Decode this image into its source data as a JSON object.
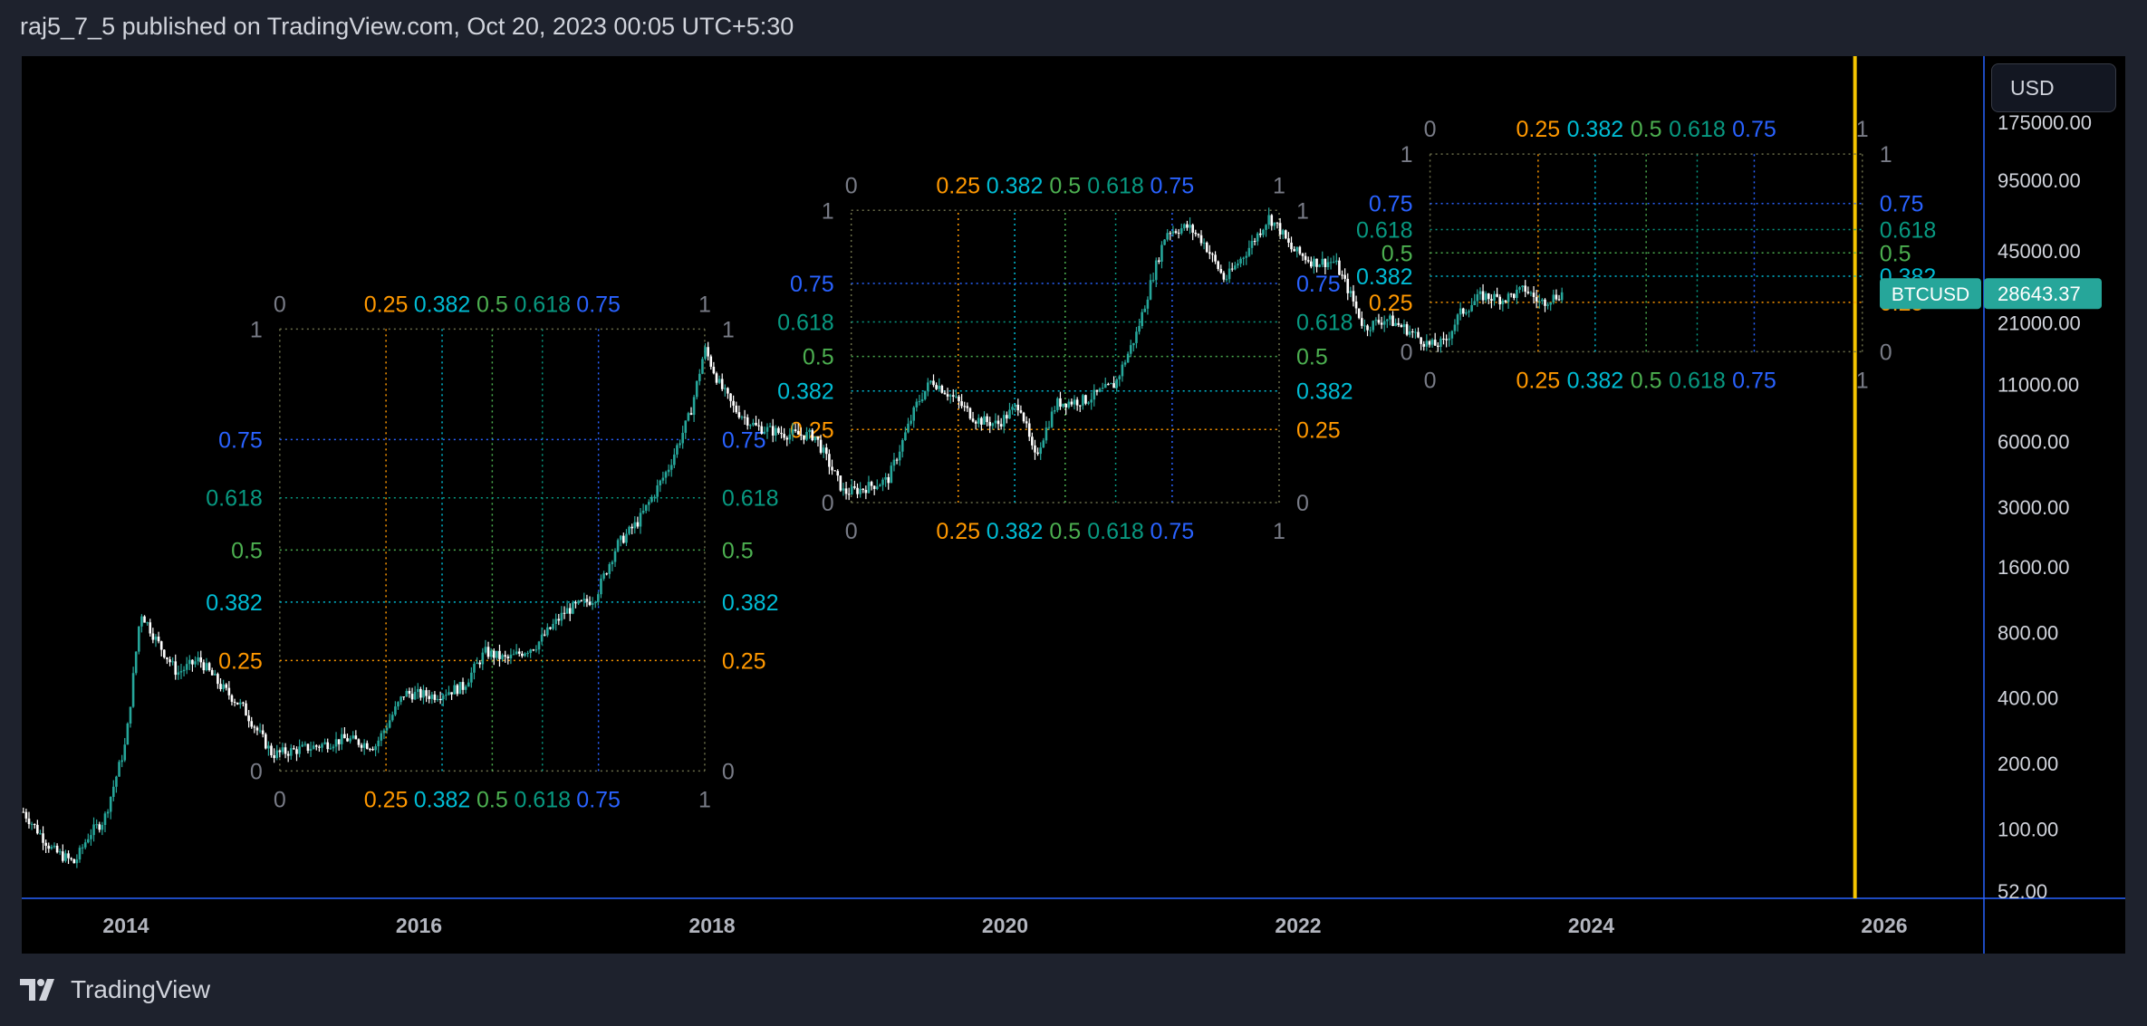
{
  "header": {
    "attribution": "raj5_7_5 published on TradingView.com, Oct 20, 2023 00:05 UTC+5:30"
  },
  "toolbar": {
    "currency": "USD"
  },
  "footer": {
    "brand": "TradingView",
    "logo_icon": "tradingview-logo-icon"
  },
  "colors": {
    "background": "#000000",
    "frame": "#1e222d",
    "axis_line": "#2962ff",
    "candle_up": "#26a69a",
    "candle_down": "#ffffff",
    "vertical_marker": "#f5c400",
    "price_badge": "#26a69a",
    "fib": {
      "0": "#787b86",
      "0.25": "#ff9800",
      "0.382": "#00bcd4",
      "0.5": "#4caf50",
      "0.618": "#089981",
      "0.75": "#2962ff",
      "1": "#787b86"
    }
  },
  "chart_data": {
    "type": "candlestick",
    "title": "",
    "symbol": "BTCUSD",
    "last_price": "28643.37",
    "yscale": "log",
    "ylim": [
      52,
      175000
    ],
    "xlim": [
      2013.3,
      2026.7
    ],
    "x_ticks": [
      "2014",
      "2016",
      "2018",
      "2020",
      "2022",
      "2024",
      "2026"
    ],
    "y_ticks": [
      "175000.00",
      "95000.00",
      "45000.00",
      "21000.00",
      "11000.00",
      "6000.00",
      "3000.00",
      "1600.00",
      "800.00",
      "400.00",
      "200.00",
      "100.00",
      "52.00"
    ],
    "vertical_marker_x": 2025.8,
    "price_path": [
      [
        2013.3,
        120
      ],
      [
        2013.5,
        80
      ],
      [
        2013.65,
        70
      ],
      [
        2013.75,
        95
      ],
      [
        2013.85,
        110
      ],
      [
        2014.0,
        250
      ],
      [
        2014.1,
        1000
      ],
      [
        2014.2,
        750
      ],
      [
        2014.35,
        520
      ],
      [
        2014.5,
        600
      ],
      [
        2014.65,
        450
      ],
      [
        2014.8,
        360
      ],
      [
        2015.0,
        220
      ],
      [
        2015.15,
        230
      ],
      [
        2015.3,
        240
      ],
      [
        2015.5,
        260
      ],
      [
        2015.7,
        240
      ],
      [
        2015.9,
        420
      ],
      [
        2016.1,
        410
      ],
      [
        2016.3,
        450
      ],
      [
        2016.45,
        650
      ],
      [
        2016.6,
        600
      ],
      [
        2016.8,
        700
      ],
      [
        2017.0,
        1000
      ],
      [
        2017.2,
        1150
      ],
      [
        2017.35,
        2000
      ],
      [
        2017.5,
        2600
      ],
      [
        2017.7,
        4500
      ],
      [
        2017.85,
        8000
      ],
      [
        2017.95,
        16000
      ],
      [
        2018.05,
        11000
      ],
      [
        2018.15,
        8500
      ],
      [
        2018.3,
        7000
      ],
      [
        2018.5,
        6500
      ],
      [
        2018.7,
        6400
      ],
      [
        2018.9,
        3500
      ],
      [
        2019.0,
        3600
      ],
      [
        2019.2,
        4000
      ],
      [
        2019.4,
        9000
      ],
      [
        2019.5,
        11500
      ],
      [
        2019.65,
        9500
      ],
      [
        2019.8,
        7600
      ],
      [
        2019.95,
        7200
      ],
      [
        2020.1,
        9000
      ],
      [
        2020.2,
        5000
      ],
      [
        2020.35,
        9000
      ],
      [
        2020.55,
        9300
      ],
      [
        2020.75,
        11000
      ],
      [
        2020.9,
        19000
      ],
      [
        2021.0,
        33000
      ],
      [
        2021.1,
        55000
      ],
      [
        2021.25,
        58000
      ],
      [
        2021.35,
        50000
      ],
      [
        2021.5,
        33000
      ],
      [
        2021.65,
        45000
      ],
      [
        2021.8,
        64000
      ],
      [
        2021.87,
        57000
      ],
      [
        2021.95,
        46000
      ],
      [
        2022.1,
        40000
      ],
      [
        2022.25,
        40000
      ],
      [
        2022.35,
        29000
      ],
      [
        2022.45,
        20000
      ],
      [
        2022.6,
        22000
      ],
      [
        2022.75,
        19500
      ],
      [
        2022.9,
        16500
      ],
      [
        2023.0,
        17000
      ],
      [
        2023.1,
        23000
      ],
      [
        2023.25,
        28000
      ],
      [
        2023.4,
        27000
      ],
      [
        2023.55,
        30000
      ],
      [
        2023.65,
        26000
      ],
      [
        2023.8,
        28643
      ]
    ],
    "fib_boxes": [
      {
        "x0": 2015.05,
        "x1": 2017.95,
        "p_low": 185,
        "p_high": 19700,
        "top_labels": [
          "0",
          "0.25",
          "0.382",
          "0.5",
          "0.618",
          "0.75",
          "1"
        ],
        "bottom_labels": [
          "0",
          "0.25",
          "0.382",
          "0.5",
          "0.618",
          "0.75",
          "1"
        ],
        "left_labels": [
          "1",
          "0.75",
          "0.618",
          "0.5",
          "0.382",
          "0.25",
          "0"
        ],
        "right_labels": [
          "1",
          "0.75",
          "0.618",
          "0.5",
          "0.382",
          "0.25",
          "0"
        ]
      },
      {
        "x0": 2018.95,
        "x1": 2021.87,
        "p_low": 3150,
        "p_high": 69000,
        "top_labels": [
          "0",
          "0.25",
          "0.382",
          "0.5",
          "0.618",
          "0.75",
          "1"
        ],
        "bottom_labels": [
          "0",
          "0.25",
          "0.382",
          "0.5",
          "0.618",
          "0.75",
          "1"
        ],
        "left_labels": [
          "1",
          "0.75",
          "0.618",
          "0.5",
          "0.382",
          "0.25",
          "0"
        ],
        "right_labels": [
          "1",
          "0.75",
          "0.618",
          "0.5",
          "0.382",
          "0.25",
          "0"
        ]
      },
      {
        "x0": 2022.9,
        "x1": 2025.85,
        "p_low": 15500,
        "p_high": 125000,
        "top_labels": [
          "0",
          "0.25",
          "0.382",
          "0.5",
          "0.618",
          "0.75",
          "1"
        ],
        "bottom_labels": [
          "0",
          "0.25",
          "0.382",
          "0.5",
          "0.618",
          "0.75",
          "1"
        ],
        "left_labels": [
          "1",
          "0.75",
          "0.618",
          "0.5",
          "0.382",
          "0.25",
          "0"
        ],
        "right_labels": [
          "1",
          "0.75",
          "0.618",
          "0.5",
          "0.382",
          "0.25",
          "0"
        ]
      }
    ]
  }
}
